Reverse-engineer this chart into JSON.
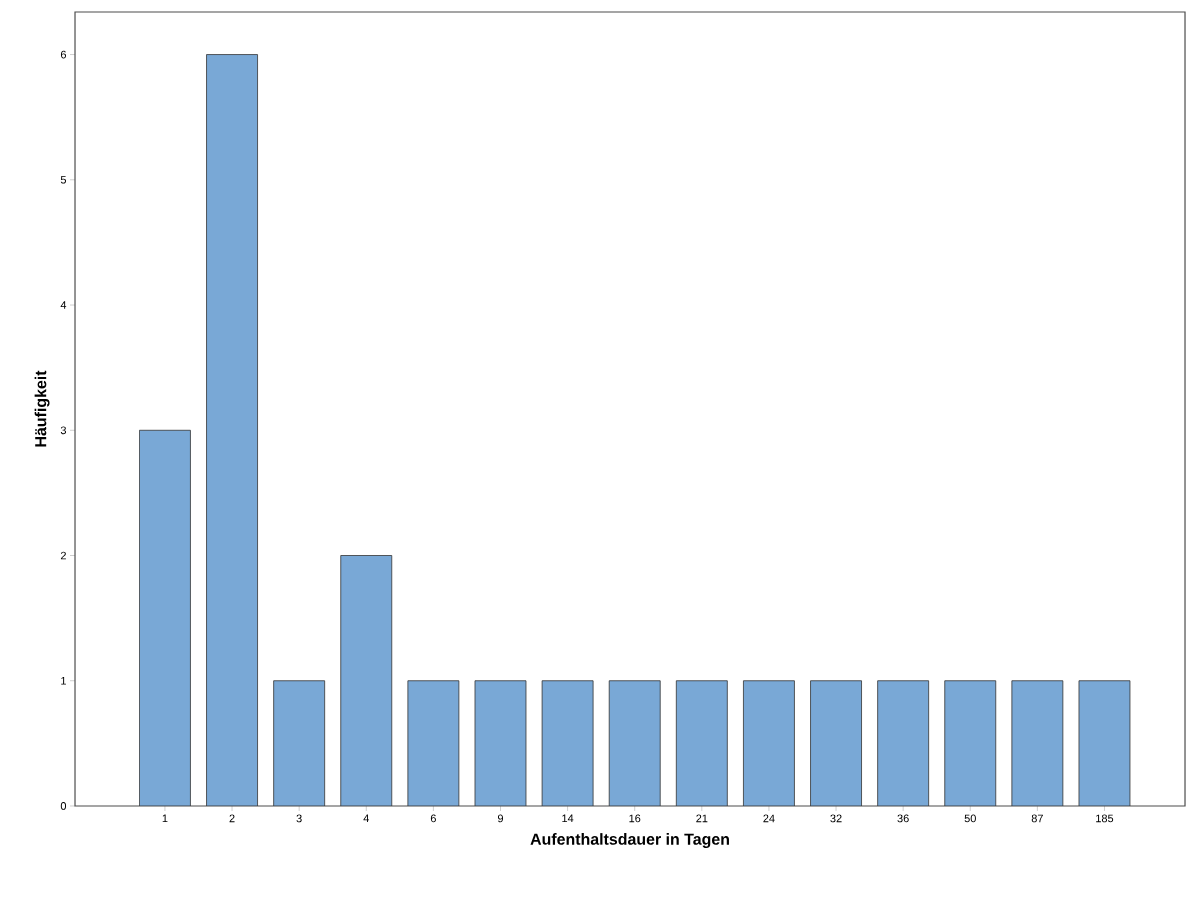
{
  "chart_data": {
    "type": "bar",
    "xlabel": "Aufenthaltsdauer in Tagen",
    "ylabel": "Häufigkeit",
    "categories": [
      "1",
      "2",
      "3",
      "4",
      "6",
      "9",
      "14",
      "16",
      "21",
      "24",
      "32",
      "36",
      "50",
      "87",
      "185"
    ],
    "values": [
      3,
      6,
      1,
      2,
      1,
      1,
      1,
      1,
      1,
      1,
      1,
      1,
      1,
      1,
      1
    ],
    "color": "#79a8d6",
    "ylim": [
      0,
      6.34
    ],
    "yticks": [
      0,
      1,
      2,
      3,
      4,
      5,
      6
    ]
  }
}
